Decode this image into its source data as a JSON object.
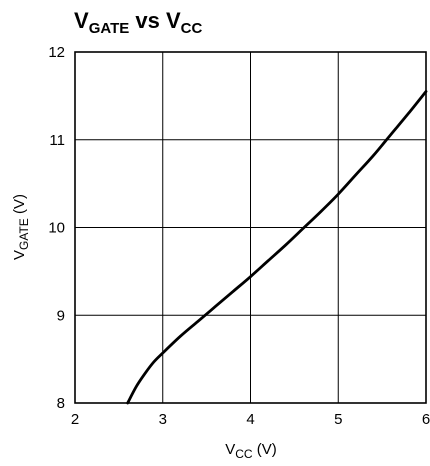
{
  "chart_data": {
    "type": "line",
    "title": {
      "main": "V",
      "main_sub": "GATE",
      "mid": " vs V",
      "tail_sub": "CC"
    },
    "xlabel": {
      "main": "V",
      "sub": "CC",
      "unit": " (V)"
    },
    "ylabel": {
      "main": "V",
      "sub": "GATE",
      "unit": " (V)"
    },
    "xlim": [
      2,
      6
    ],
    "ylim": [
      8,
      12
    ],
    "xticks": [
      "2",
      "3",
      "4",
      "5",
      "6"
    ],
    "yticks": [
      "8",
      "9",
      "10",
      "11",
      "12"
    ],
    "grid": true,
    "series": [
      {
        "x": [
          2.6,
          2.7,
          2.8,
          2.9,
          3.0,
          3.2,
          3.4,
          3.6,
          3.8,
          4.0,
          4.2,
          4.4,
          4.6,
          4.8,
          5.0,
          5.2,
          5.4,
          5.6,
          5.8,
          6.0
        ],
        "y": [
          8.0,
          8.19,
          8.34,
          8.47,
          8.57,
          8.76,
          8.93,
          9.1,
          9.27,
          9.44,
          9.62,
          9.8,
          9.99,
          10.18,
          10.38,
          10.6,
          10.82,
          11.06,
          11.3,
          11.55
        ],
        "color": "#000000"
      }
    ]
  }
}
